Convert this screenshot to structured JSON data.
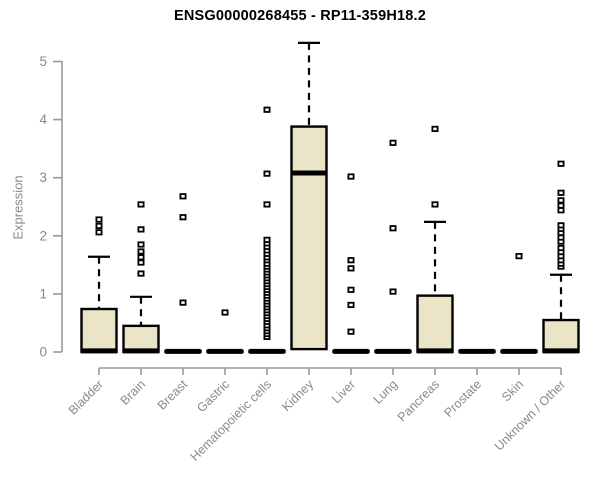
{
  "chart_data": {
    "type": "boxplot",
    "title": "ENSG00000268455 - RP11-359H18.2",
    "xlabel": "",
    "ylabel": "Expression",
    "ylim": [
      0,
      5
    ],
    "yticks": [
      0,
      1,
      2,
      3,
      4,
      5
    ],
    "grid": false,
    "legend": "none",
    "categories": [
      "Bladder",
      "Brain",
      "Breast",
      "Gastric",
      "Hematopoietic cells",
      "Kidney",
      "Liver",
      "Lung",
      "Pancreas",
      "Prostate",
      "Skin",
      "Unknown / Other"
    ],
    "boxes": [
      {
        "category": "Bladder",
        "q1": 0,
        "median": 0.02,
        "q3": 0.74,
        "whisker_low": 0,
        "whisker_high": 1.64,
        "outliers": [
          2.06,
          2.17,
          2.28
        ]
      },
      {
        "category": "Brain",
        "q1": 0,
        "median": 0.02,
        "q3": 0.45,
        "whisker_low": 0,
        "whisker_high": 0.95,
        "outliers": [
          1.35,
          1.54,
          1.63,
          1.73,
          1.85,
          2.11,
          2.54
        ]
      },
      {
        "category": "Breast",
        "q1": 0,
        "median": 0.01,
        "q3": 0.02,
        "whisker_low": 0,
        "whisker_high": 0.02,
        "outliers": [
          0.85,
          2.32,
          2.68
        ]
      },
      {
        "category": "Gastric",
        "q1": 0,
        "median": 0.01,
        "q3": 0.02,
        "whisker_low": 0,
        "whisker_high": 0.02,
        "outliers": [
          0.68
        ]
      },
      {
        "category": "Hematopoietic cells",
        "q1": 0,
        "median": 0.01,
        "q3": 0.02,
        "whisker_low": 0,
        "whisker_high": 0.02,
        "outliers": [
          0.26,
          0.31,
          0.36,
          0.41,
          0.46,
          0.52,
          0.57,
          0.62,
          0.67,
          0.72,
          0.77,
          0.82,
          0.87,
          0.92,
          0.97,
          1.02,
          1.07,
          1.12,
          1.17,
          1.22,
          1.27,
          1.32,
          1.37,
          1.42,
          1.47,
          1.52,
          1.58,
          1.63,
          1.69,
          1.75,
          1.81,
          1.87,
          1.93,
          2.54,
          3.07,
          4.17
        ]
      },
      {
        "category": "Kidney",
        "q1": 0.05,
        "median": 3.08,
        "q3": 3.88,
        "whisker_low": 0.05,
        "whisker_high": 5.32,
        "outliers": []
      },
      {
        "category": "Liver",
        "q1": 0,
        "median": 0.01,
        "q3": 0.02,
        "whisker_low": 0,
        "whisker_high": 0.02,
        "outliers": [
          0.35,
          0.81,
          1.07,
          1.44,
          1.58,
          3.02
        ]
      },
      {
        "category": "Lung",
        "q1": 0,
        "median": 0.01,
        "q3": 0.02,
        "whisker_low": 0,
        "whisker_high": 0.02,
        "outliers": [
          1.04,
          2.13,
          3.6
        ]
      },
      {
        "category": "Pancreas",
        "q1": 0,
        "median": 0.02,
        "q3": 0.97,
        "whisker_low": 0,
        "whisker_high": 2.24,
        "outliers": [
          2.54,
          3.84
        ]
      },
      {
        "category": "Prostate",
        "q1": 0,
        "median": 0.01,
        "q3": 0.02,
        "whisker_low": 0,
        "whisker_high": 0.02,
        "outliers": []
      },
      {
        "category": "Skin",
        "q1": 0,
        "median": 0.01,
        "q3": 0.02,
        "whisker_low": 0,
        "whisker_high": 0.02,
        "outliers": [
          1.65
        ]
      },
      {
        "category": "Unknown / Other",
        "q1": 0,
        "median": 0.02,
        "q3": 0.55,
        "whisker_low": 0,
        "whisker_high": 1.33,
        "outliers": [
          1.47,
          1.52,
          1.58,
          1.65,
          1.72,
          1.79,
          1.9,
          1.97,
          2.05,
          2.12,
          2.18,
          2.44,
          2.52,
          2.61,
          2.74,
          3.24
        ]
      }
    ],
    "colors": {
      "box_fill": "#ebe5c7",
      "box_border": "#000000",
      "median": "#000000",
      "whisker": "#000000",
      "outlier_stroke": "#000000",
      "outlier_fill": "#ffffff",
      "axis": "#9a9a9a",
      "tick_label": "#8a8a8a",
      "title": "#000000",
      "background": "#ffffff"
    }
  }
}
